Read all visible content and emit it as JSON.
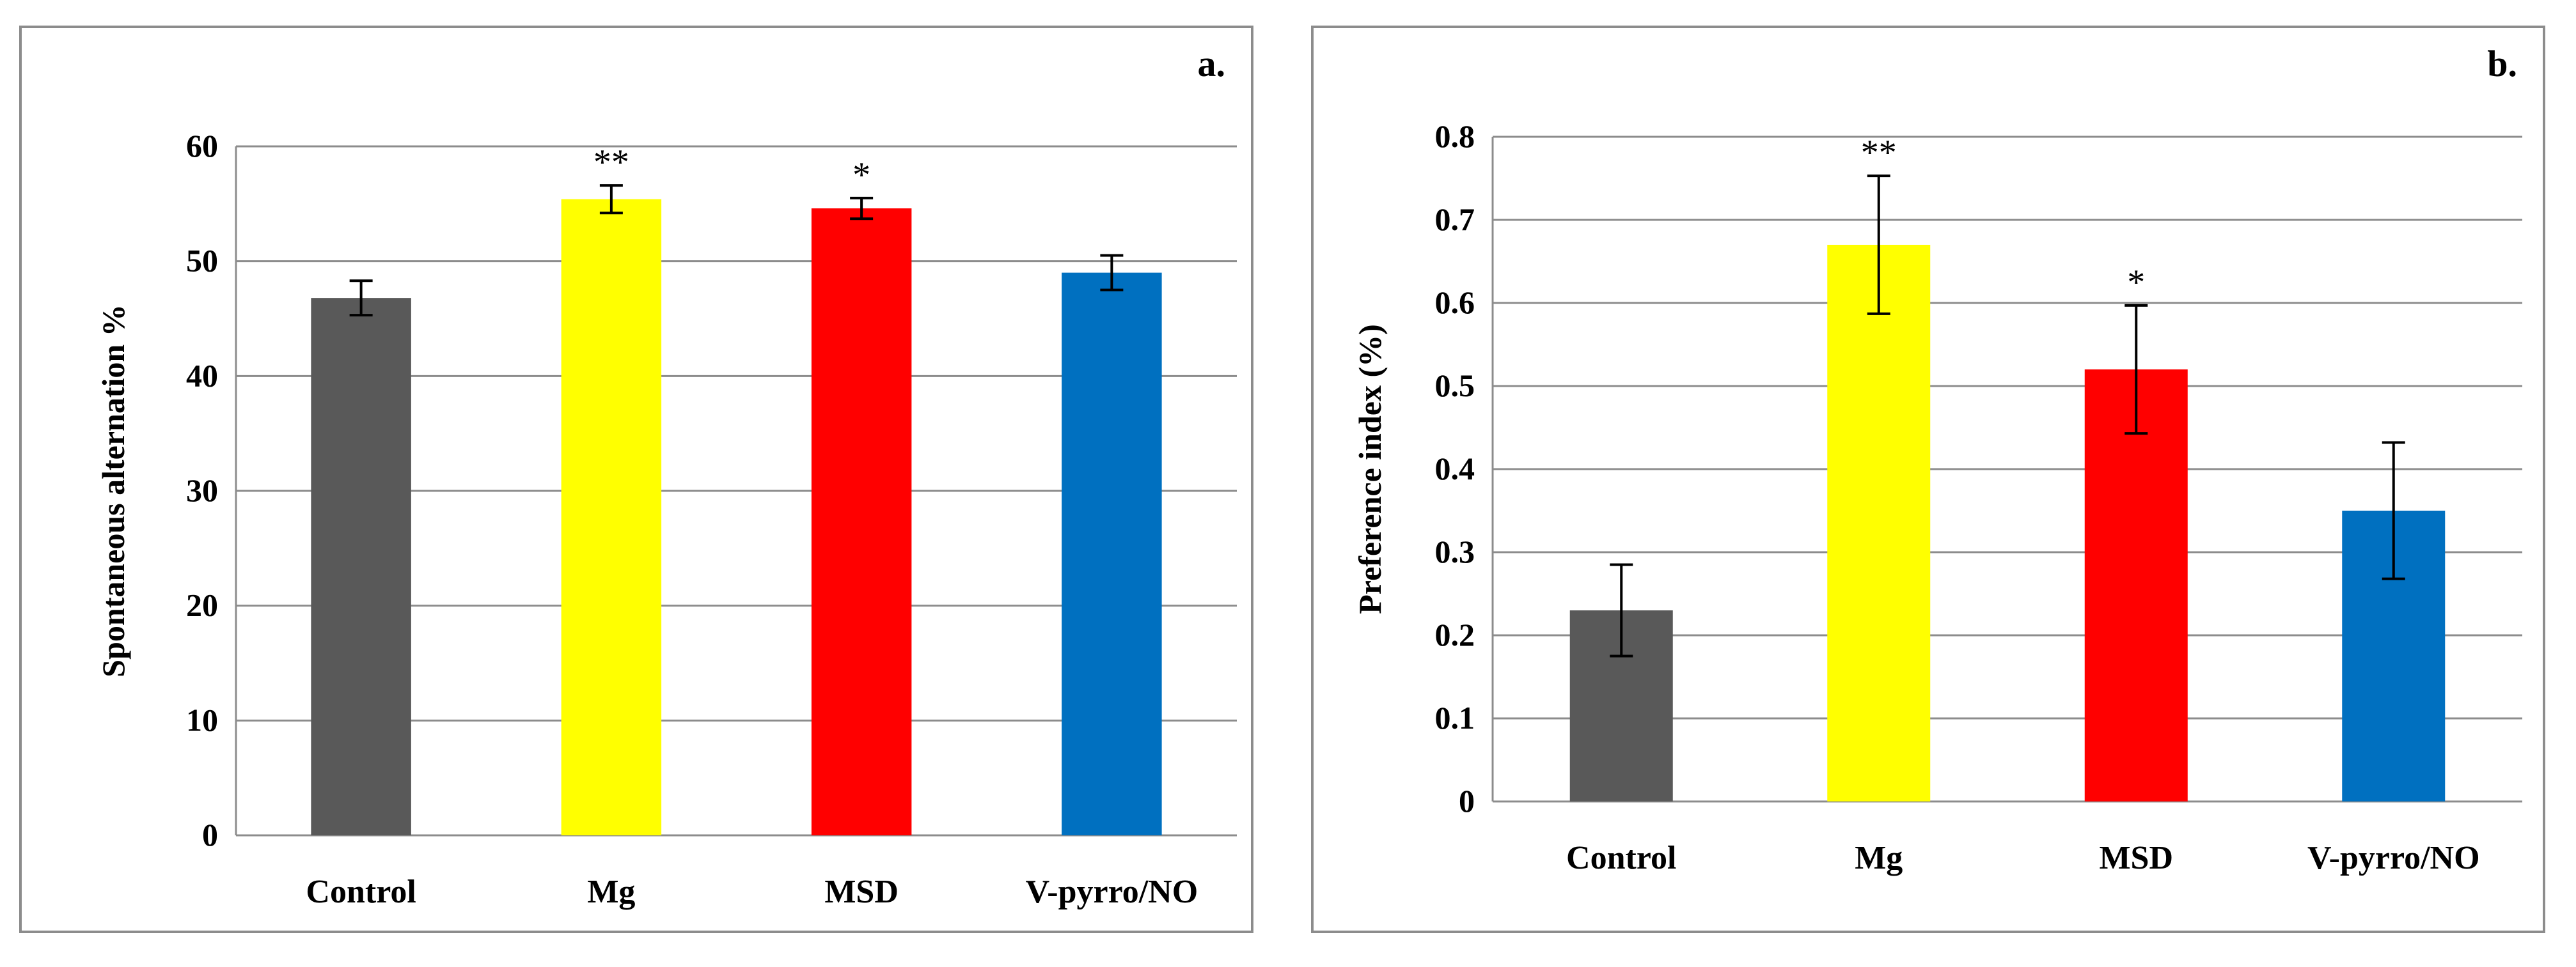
{
  "chart_data": [
    {
      "type": "bar",
      "panel_label": "a.",
      "categories": [
        "Control",
        "Mg",
        "MSD",
        "V-pyrro/NO"
      ],
      "values": [
        46.8,
        55.4,
        54.6,
        49.0
      ],
      "errors": [
        1.5,
        1.2,
        0.9,
        1.5
      ],
      "significance": [
        "",
        "**",
        "*",
        ""
      ],
      "colors": [
        "#595959",
        "#ffff00",
        "#ff0000",
        "#0070c0"
      ],
      "ylabel": "Spontaneous alternation  %",
      "xlabel": "",
      "ylim": [
        0,
        60
      ],
      "yticks": [
        "0",
        "10",
        "20",
        "30",
        "40",
        "50",
        "60"
      ],
      "grid": true
    },
    {
      "type": "bar",
      "panel_label": "b.",
      "categories": [
        "Control",
        "Mg",
        "MSD",
        "V-pyrro/NO"
      ],
      "values": [
        0.23,
        0.67,
        0.52,
        0.35
      ],
      "errors": [
        0.055,
        0.083,
        0.077,
        0.082
      ],
      "significance": [
        "",
        "**",
        "*",
        ""
      ],
      "colors": [
        "#595959",
        "#ffff00",
        "#ff0000",
        "#0070c0"
      ],
      "ylabel": "Preference index  (%)",
      "xlabel": "",
      "ylim": [
        0,
        0.8
      ],
      "yticks": [
        "0",
        "0.1",
        "0.2",
        "0.3",
        "0.4",
        "0.5",
        "0.6",
        "0.7",
        "0.8"
      ],
      "grid": true
    }
  ]
}
